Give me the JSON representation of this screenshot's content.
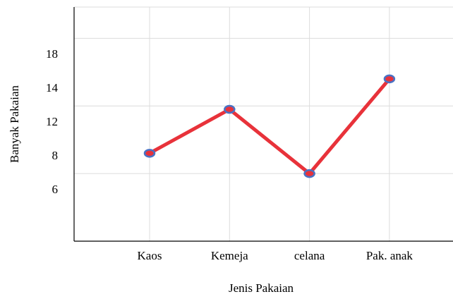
{
  "chart_data": {
    "type": "line",
    "xlabel": "Jenis Pakaian",
    "ylabel": "Banyak Pakaian",
    "categories": [
      "Kaos",
      "Kemeja",
      "celana",
      "Pak. anak"
    ],
    "series": [
      {
        "name": "Banyak Pakaian",
        "color": "#e8323a",
        "marker_color": "#4a72c4",
        "values": [
          8.4,
          12.8,
          7,
          15.2
        ]
      }
    ],
    "ylim": [
      3,
      23.7
    ],
    "yticks": [
      6,
      8,
      12,
      14,
      18
    ],
    "ygrid": [
      7,
      13,
      20
    ],
    "grid": true
  }
}
